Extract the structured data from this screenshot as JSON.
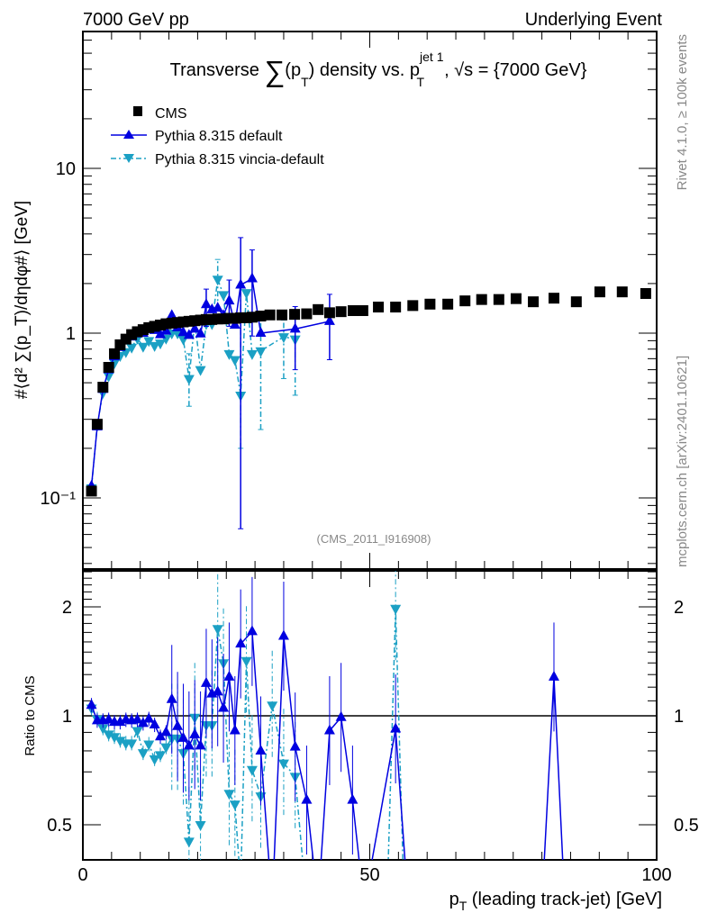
{
  "header": {
    "left": "7000 GeV pp",
    "right": "Underlying Event"
  },
  "side_labels": {
    "top": "Rivet 4.1.0, ≥ 100k events",
    "bottom": "mcplots.cern.ch [arXiv:2401.10621]"
  },
  "analysis_id": "(CMS_2011_I916908)",
  "colors": {
    "cms": "#000000",
    "default": "#0000e0",
    "vincia": "#1ba0c4"
  },
  "chart_data": [
    {
      "type": "scatter",
      "panel": "main",
      "title_parts": {
        "a": "Transverse ",
        "sum": "∑",
        "b": "(p",
        "sub1": "T",
        "c": ") density vs. p",
        "sup": "jet 1",
        "sub2": "T",
        "d": ", √s = {7000 GeV}"
      },
      "ylabel": "#⟨d² ∑(p_T)/dηdφ#⟩ [GeV]",
      "yscale": "log",
      "ylim": [
        0.037,
        68
      ],
      "xlim": [
        0,
        100
      ],
      "yticklabels": [
        {
          "v": 10,
          "label": "10"
        },
        {
          "v": 1,
          "label": "1"
        },
        {
          "v": 0.1,
          "label": "10⁻¹"
        }
      ],
      "legend_position": "top-left",
      "series": [
        {
          "name": "CMS",
          "key": "cms",
          "marker": "square",
          "x": [
            1.5,
            2.5,
            3.5,
            4.5,
            5.5,
            6.5,
            7.5,
            8.5,
            9.5,
            10.5,
            11.5,
            12.5,
            13.5,
            14.5,
            15.5,
            16.5,
            17.5,
            18.5,
            19.5,
            20.5,
            21.5,
            22.5,
            23.5,
            24.5,
            25.5,
            26.5,
            27.5,
            28.5,
            29.5,
            31,
            32.6,
            34.7,
            36.9,
            39,
            41,
            43,
            45,
            47.1,
            48.8,
            51.5,
            54.5,
            57.5,
            60.5,
            63.6,
            66.6,
            69.5,
            72.5,
            75.5,
            78.5,
            82.1,
            86,
            90.1,
            94,
            98.1
          ],
          "y": [
            0.11,
            0.28,
            0.47,
            0.62,
            0.75,
            0.85,
            0.92,
            0.98,
            1.02,
            1.05,
            1.08,
            1.1,
            1.12,
            1.14,
            1.15,
            1.16,
            1.17,
            1.18,
            1.19,
            1.2,
            1.21,
            1.21,
            1.22,
            1.22,
            1.23,
            1.23,
            1.24,
            1.24,
            1.25,
            1.27,
            1.29,
            1.29,
            1.3,
            1.31,
            1.39,
            1.33,
            1.35,
            1.37,
            1.37,
            1.44,
            1.44,
            1.47,
            1.5,
            1.5,
            1.57,
            1.6,
            1.6,
            1.62,
            1.55,
            1.63,
            1.55,
            1.78,
            1.78,
            1.74
          ]
        },
        {
          "name": "Pythia 8.315 default",
          "key": "default",
          "marker": "triangle-up",
          "line": "solid",
          "x": [
            1.5,
            2.5,
            3.5,
            4.5,
            5.5,
            6.5,
            7.5,
            8.5,
            9.5,
            10.5,
            11.5,
            12.5,
            13.5,
            14.5,
            15.5,
            16.5,
            17.5,
            18.5,
            19.5,
            20.5,
            21.5,
            22.5,
            23.5,
            24.5,
            25.5,
            26.5,
            27.5,
            29.5,
            31,
            37,
            43
          ],
          "y": [
            0.118,
            0.27,
            0.456,
            0.6,
            0.72,
            0.82,
            0.9,
            0.95,
            0.99,
            1.0,
            1.06,
            1.04,
            0.98,
            1.03,
            1.28,
            1.08,
            1.01,
            0.97,
            1.06,
            0.99,
            1.49,
            1.39,
            1.42,
            1.28,
            1.57,
            1.12,
            1.96,
            2.14,
            1.0,
            1.06,
            1.18
          ],
          "errors": [
            {
              "x": 27.5,
              "lo": 0.065,
              "hi": 3.8
            },
            {
              "x": 29.5,
              "lo": 0.96,
              "hi": 3.2
            },
            {
              "x": 43,
              "lo": 0.69,
              "hi": 1.72
            },
            {
              "x": 25.5,
              "lo": 1.1,
              "hi": 2.1
            },
            {
              "x": 21.5,
              "lo": 1.1,
              "hi": 1.85
            },
            {
              "x": 37,
              "lo": 0.6,
              "hi": 1.45
            }
          ]
        },
        {
          "name": "Pythia 8.315 vincia-default",
          "key": "vincia",
          "marker": "triangle-down",
          "line": "dashdot",
          "x": [
            1.5,
            2.5,
            3.5,
            4.5,
            5.5,
            6.5,
            7.5,
            8.5,
            9.5,
            10.5,
            11.5,
            12.5,
            13.5,
            14.5,
            15.5,
            16.5,
            17.5,
            18.5,
            19.5,
            20.5,
            21.5,
            22.5,
            23.5,
            24.5,
            25.5,
            26.5,
            27.5,
            28.5,
            29.5,
            31,
            35,
            37
          ],
          "y": [
            0.115,
            0.275,
            0.435,
            0.55,
            0.66,
            0.73,
            0.77,
            0.82,
            0.93,
            0.83,
            0.9,
            0.84,
            0.87,
            0.93,
            1.0,
            1.0,
            0.92,
            0.53,
            1.18,
            0.6,
            1.14,
            1.14,
            2.12,
            1.71,
            0.75,
            0.69,
            0.42,
            1.76,
            0.75,
            0.78,
            0.95,
            0.92
          ],
          "errors": [
            {
              "x": 23.5,
              "lo": 1.4,
              "hi": 2.8
            },
            {
              "x": 18.5,
              "lo": 0.36,
              "hi": 0.75
            },
            {
              "x": 27.5,
              "lo": 0.2,
              "hi": 1.9
            },
            {
              "x": 31,
              "lo": 0.26,
              "hi": 1.2
            },
            {
              "x": 37,
              "lo": 0.42,
              "hi": 1.35
            },
            {
              "x": 35,
              "lo": 0.53,
              "hi": 1.2
            }
          ]
        }
      ]
    },
    {
      "type": "line",
      "panel": "ratio",
      "xlabel_parts": {
        "p": "p",
        "sub": "T",
        "rest": " (leading track-jet) [GeV]"
      },
      "ylabel": "Ratio to CMS",
      "yscale": "log",
      "ylim": [
        0.4,
        2.52
      ],
      "xlim": [
        0,
        100
      ],
      "xticklabels": [
        {
          "v": 0,
          "label": "0"
        },
        {
          "v": 50,
          "label": "50"
        },
        {
          "v": 100,
          "label": "100"
        }
      ],
      "yticklabels": [
        {
          "v": 2,
          "label": "2"
        },
        {
          "v": 1,
          "label": "1"
        },
        {
          "v": 0.5,
          "label": "0.5"
        }
      ],
      "reference_line": 1,
      "series": [
        {
          "name": "Pythia 8.315 default",
          "key": "default",
          "x": [
            1.5,
            2.5,
            3.5,
            4.5,
            5.5,
            6.5,
            7.5,
            8.5,
            9.5,
            10.5,
            11.5,
            12.5,
            13.5,
            14.5,
            15.5,
            16.5,
            17.5,
            18.5,
            19.5,
            20.5,
            21.5,
            22.5,
            23.5,
            24.5,
            25.5,
            26.5,
            27.5,
            29.5,
            31,
            33,
            35,
            37,
            39,
            41,
            43,
            45,
            47,
            49,
            54.5,
            56.7,
            80,
            82.1,
            84
          ],
          "y": [
            1.07,
            0.97,
            0.97,
            0.975,
            0.96,
            0.96,
            0.975,
            0.97,
            0.975,
            0.953,
            0.98,
            0.944,
            0.875,
            0.9,
            1.11,
            0.935,
            0.867,
            0.826,
            0.887,
            0.826,
            1.23,
            1.15,
            1.165,
            1.05,
            1.28,
            0.91,
            1.58,
            1.71,
            0.8,
            0.3,
            1.66,
            0.82,
            0.585,
            0.3,
            0.91,
            0.99,
            0.585,
            0.3,
            0.92,
            0.3,
            0.3,
            1.28,
            0.3
          ]
        },
        {
          "name": "Pythia 8.315 vincia-default",
          "key": "vincia",
          "x": [
            1.5,
            2.5,
            3.5,
            4.5,
            5.5,
            6.5,
            7.5,
            8.5,
            9.5,
            10.5,
            11.5,
            12.5,
            13.5,
            14.5,
            15.5,
            16.5,
            17.5,
            18.5,
            19.5,
            20.5,
            21.5,
            22.5,
            23.5,
            24.5,
            25.5,
            26.5,
            27.5,
            28.5,
            29.5,
            31,
            33,
            35,
            37,
            39,
            53,
            54.5,
            56
          ],
          "y": [
            1.05,
            0.98,
            0.925,
            0.89,
            0.875,
            0.855,
            0.84,
            0.84,
            0.91,
            0.79,
            0.835,
            0.76,
            0.78,
            0.82,
            0.867,
            0.867,
            0.79,
            0.45,
            0.99,
            0.5,
            0.944,
            0.944,
            1.74,
            1.4,
            0.61,
            0.57,
            0.34,
            1.42,
            0.71,
            0.6,
            1.07,
            0.74,
            0.68,
            0.3,
            0.3,
            1.98,
            0.3
          ]
        }
      ]
    }
  ]
}
